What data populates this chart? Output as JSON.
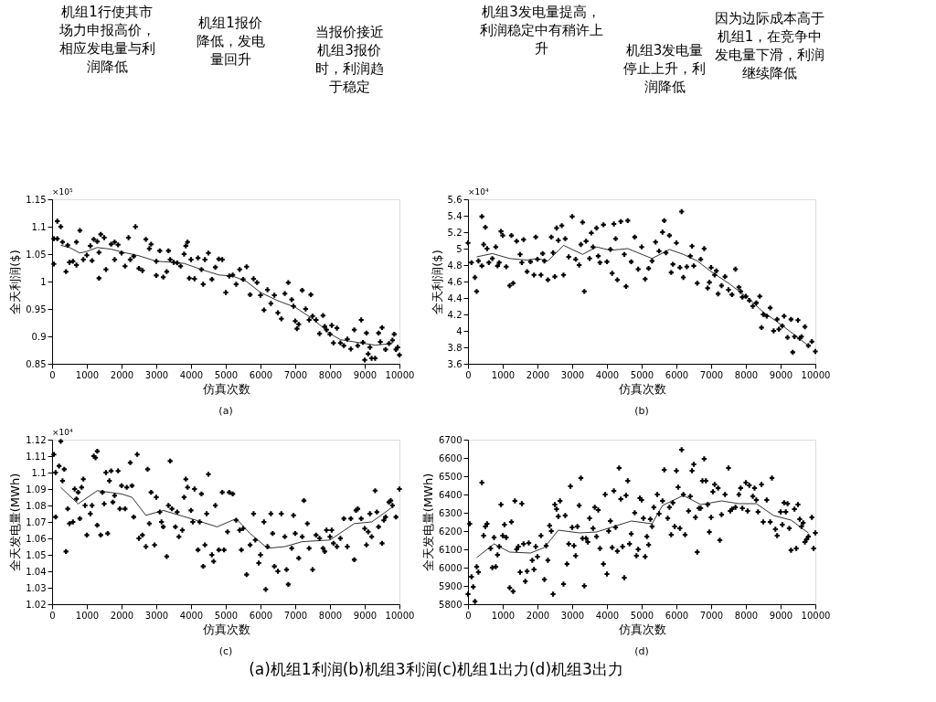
{
  "chart_data": [
    {
      "type": "scatter",
      "subtitle": "(a)",
      "xlabel": "仿真次数",
      "ylabel": "全天利润($)",
      "xlim": [
        0,
        10000
      ],
      "xticks": [
        0,
        1000,
        2000,
        3000,
        4000,
        5000,
        6000,
        7000,
        8000,
        9000,
        10000
      ],
      "ylim": [
        0.85,
        1.15
      ],
      "yticks": [
        0.85,
        0.9,
        0.95,
        1,
        1.05,
        1.1,
        1.15
      ],
      "grid": false,
      "annotations": [
        "×10⁵",
        "机组1行使其市场力申报高价，相应发电量与利润降低",
        "机组1报价降低，发电量回升",
        "当报价接近机组3报价时，利润趋于稳定"
      ],
      "series": [
        {
          "marker": "cross",
          "color": "#000000",
          "x": [
            150,
            250,
            50,
            150,
            300,
            450,
            700,
            800,
            50,
            400,
            500,
            600,
            700,
            900,
            1000,
            1100,
            1150,
            1200,
            1300,
            1350,
            1400,
            1500,
            1350,
            1550,
            1700,
            1800,
            1900,
            2000,
            1800,
            2100,
            2200,
            2250,
            2400,
            2350,
            2500,
            2600,
            2700,
            2800,
            2850,
            3000,
            3100,
            3000,
            3200,
            3300,
            3350,
            3400,
            3500,
            3600,
            3700,
            3800,
            3850,
            3900,
            3950,
            4000,
            4100,
            4200,
            4300,
            4350,
            4400,
            4500,
            4600,
            4700,
            4800,
            4900,
            5000,
            5100,
            5200,
            5300,
            5400,
            5500,
            5600,
            5700,
            5800,
            5900,
            6000,
            6100,
            6200,
            6300,
            6400,
            6500,
            6600,
            6700,
            6800,
            6900,
            6950,
            7000,
            7050,
            7100,
            7200,
            7300,
            7400,
            7450,
            7500,
            7600,
            7700,
            7800,
            7850,
            7900,
            8000,
            8050,
            8100,
            8200,
            8300,
            8400,
            8500,
            8600,
            8700,
            8800,
            8900,
            8950,
            9000,
            9050,
            9100,
            9150,
            9200,
            9300,
            9400,
            9450,
            9500,
            9600,
            9700,
            9800,
            9850,
            9900,
            9950,
            10000
          ],
          "values": [
            1.11,
            1.1,
            1.078,
            1.078,
            1.072,
            1.066,
            1.072,
            1.093,
            1.032,
            1.018,
            1.035,
            1.037,
            1.03,
            1.04,
            1.048,
            1.065,
            1.038,
            1.077,
            1.073,
            1.053,
            1.086,
            1.08,
            1.006,
            1.022,
            1.068,
            1.072,
            1.067,
            1.052,
            1.04,
            1.028,
            1.08,
            1.04,
            1.1,
            1.046,
            1.024,
            1.02,
            1.077,
            1.06,
            1.068,
            1.037,
            1.056,
            1.011,
            1.008,
            1.018,
            1.056,
            1.04,
            1.035,
            1.034,
            1.028,
            1.05,
            1.065,
            1.072,
            1.006,
            1.04,
            1.005,
            1.043,
            1.022,
            0.995,
            1.04,
            1.052,
            1.004,
            1.026,
            1.041,
            1.04,
            0.98,
            1.01,
            1.012,
            0.995,
            1.022,
            1.004,
            1.027,
            0.976,
            1.005,
            0.998,
            0.975,
            0.948,
            0.985,
            0.96,
            0.975,
            0.943,
            0.932,
            0.978,
            0.998,
            0.967,
            0.955,
            0.928,
            0.914,
            0.922,
            0.984,
            0.95,
            0.93,
            0.976,
            0.937,
            0.93,
            0.905,
            0.938,
            0.918,
            0.912,
            0.904,
            0.92,
            0.888,
            0.915,
            0.888,
            0.883,
            0.895,
            0.877,
            0.912,
            0.883,
            0.93,
            0.889,
            0.857,
            0.906,
            0.868,
            0.88,
            0.86,
            0.86,
            0.906,
            0.89,
            0.916,
            0.876,
            0.887,
            0.893,
            0.904,
            0.876,
            0.88,
            0.866
          ]
        },
        {
          "type": "line",
          "marker": "none",
          "color": "#000000",
          "x": [
            250,
            500,
            800,
            1000,
            1300,
            1700,
            2000,
            2500,
            3000,
            3500,
            3800,
            4300,
            4800,
            5200,
            5600,
            6000,
            6500,
            7000,
            7500,
            8000,
            8300,
            8700,
            9300,
            9800
          ],
          "values": [
            1.066,
            1.062,
            1.052,
            1.055,
            1.062,
            1.059,
            1.054,
            1.047,
            1.037,
            1.035,
            1.033,
            1.022,
            1.012,
            1.01,
            1.0,
            0.98,
            0.965,
            0.953,
            0.932,
            0.905,
            0.894,
            0.89,
            0.884,
            0.887
          ]
        }
      ]
    },
    {
      "type": "scatter",
      "subtitle": "(b)",
      "xlabel": "仿真次数",
      "ylabel": "全天利润($)",
      "xlim": [
        0,
        10000
      ],
      "xticks": [
        0,
        1000,
        2000,
        3000,
        4000,
        5000,
        6000,
        7000,
        8000,
        9000,
        10000
      ],
      "ylim": [
        3.6,
        5.6
      ],
      "yticks": [
        3.6,
        3.8,
        4,
        4.2,
        4.4,
        4.6,
        4.8,
        5,
        5.2,
        5.4,
        5.6
      ],
      "grid": false,
      "annotations": [
        "×10⁴",
        "机组3发电量提高，利润稳定中有稍许上升",
        "机组3发电量停止上升，利润降低",
        "因为边际成本高于机组1，在竞争中发电量下滑，利润继续降低"
      ],
      "series": [
        {
          "marker": "cross",
          "color": "#000000",
          "x": [
            0,
            100,
            200,
            250,
            300,
            400,
            400,
            450,
            500,
            550,
            600,
            700,
            800,
            850,
            900,
            950,
            1000,
            1100,
            1200,
            1250,
            1300,
            1400,
            1500,
            1550,
            1600,
            1700,
            1800,
            1900,
            1950,
            2000,
            2100,
            2150,
            2200,
            2300,
            2400,
            2450,
            2500,
            2550,
            2600,
            2700,
            2750,
            2800,
            2900,
            3000,
            3100,
            3200,
            3250,
            3300,
            3350,
            3400,
            3500,
            3550,
            3600,
            3700,
            3750,
            3800,
            3900,
            4000,
            4100,
            4150,
            4200,
            4250,
            4300,
            4400,
            4500,
            4550,
            4600,
            4700,
            4800,
            4900,
            5000,
            5100,
            5200,
            5300,
            5400,
            5500,
            5600,
            5650,
            5700,
            5800,
            5850,
            5900,
            6000,
            6100,
            6150,
            6200,
            6300,
            6400,
            6450,
            6500,
            6600,
            6700,
            6800,
            6900,
            6950,
            7000,
            7100,
            7150,
            7200,
            7300,
            7400,
            7500,
            7600,
            7700,
            7800,
            7850,
            7900,
            8000,
            8100,
            8200,
            8300,
            8400,
            8450,
            8500,
            8600,
            8700,
            8800,
            8900,
            8950,
            9050,
            9100,
            9200,
            9300,
            9350,
            9400,
            9500,
            9550,
            9600,
            9700,
            9800,
            9900,
            10000
          ],
          "values": [
            5.07,
            4.83,
            4.65,
            4.48,
            4.85,
            4.79,
            5.39,
            5.05,
            5.26,
            5.0,
            4.83,
            4.88,
            5.02,
            4.79,
            4.83,
            5.21,
            5.16,
            4.78,
            4.55,
            5.16,
            4.58,
            5.09,
            4.93,
            4.83,
            5.11,
            4.72,
            4.84,
            4.68,
            5.14,
            4.87,
            4.68,
            4.94,
            4.85,
            4.62,
            5.14,
            4.95,
            4.66,
            5.25,
            5.1,
            5.28,
            4.68,
            5.12,
            4.9,
            5.39,
            4.87,
            4.8,
            5.05,
            5.32,
            4.48,
            5.09,
            4.88,
            5.19,
            5.02,
            5.25,
            4.91,
            4.83,
            5.29,
            4.84,
            4.99,
            4.7,
            5.3,
            5.12,
            4.62,
            5.33,
            4.93,
            4.54,
            5.34,
            4.84,
            5.14,
            4.75,
            5.02,
            4.63,
            4.76,
            4.85,
            5.08,
            4.97,
            5.2,
            5.34,
            4.95,
            5.16,
            4.71,
            4.81,
            5.07,
            4.77,
            5.45,
            4.65,
            4.78,
            4.91,
            5.03,
            4.79,
            4.58,
            4.87,
            5.0,
            4.52,
            4.59,
            4.77,
            4.68,
            4.73,
            4.45,
            4.55,
            4.66,
            4.5,
            4.44,
            4.75,
            4.53,
            4.48,
            4.41,
            4.42,
            4.37,
            4.3,
            4.34,
            4.42,
            4.04,
            4.2,
            4.18,
            4.28,
            4.0,
            4.14,
            4.02,
            4.06,
            4.18,
            3.92,
            4.14,
            3.74,
            3.93,
            4.13,
            3.91,
            3.93,
            4.05,
            3.82,
            3.87,
            3.75
          ]
        },
        {
          "type": "line",
          "marker": "none",
          "color": "#000000",
          "x": [
            250,
            700,
            1200,
            1700,
            2000,
            2300,
            2750,
            3300,
            3700,
            4100,
            4600,
            5300,
            5800,
            6200,
            6600,
            7000,
            7500,
            8000,
            8500,
            9000,
            9500,
            9800
          ],
          "values": [
            4.9,
            4.94,
            4.88,
            4.86,
            4.88,
            4.85,
            5.04,
            4.93,
            5.02,
            4.98,
            5.0,
            4.88,
            4.99,
            4.93,
            4.85,
            4.72,
            4.58,
            4.42,
            4.23,
            4.08,
            3.92,
            3.82
          ]
        }
      ]
    },
    {
      "type": "scatter",
      "subtitle": "(c)",
      "xlabel": "仿真次数",
      "ylabel": "全天发电量(MWh)",
      "xlim": [
        0,
        10000
      ],
      "xticks": [
        0,
        1000,
        2000,
        3000,
        4000,
        5000,
        6000,
        7000,
        8000,
        9000,
        10000
      ],
      "ylim": [
        1.02,
        1.12
      ],
      "yticks": [
        1.02,
        1.03,
        1.04,
        1.05,
        1.06,
        1.07,
        1.08,
        1.09,
        1.1,
        1.11,
        1.12
      ],
      "grid": false,
      "annotations": [
        "×10⁴",
        "(a)机组1利润(b)机组3利润(c)机组1出力(d)机组3出力"
      ],
      "series": [
        {
          "marker": "cross",
          "color": "#000000",
          "x": [
            50,
            100,
            100,
            200,
            250,
            300,
            350,
            400,
            450,
            500,
            600,
            650,
            700,
            750,
            800,
            850,
            900,
            950,
            1000,
            1100,
            1150,
            1200,
            1250,
            1300,
            1300,
            1400,
            1450,
            1500,
            1550,
            1600,
            1650,
            1700,
            1750,
            1800,
            1900,
            1950,
            2000,
            2100,
            2150,
            2250,
            2300,
            2350,
            2450,
            2500,
            2600,
            2700,
            2750,
            2800,
            2850,
            2950,
            3000,
            3100,
            3150,
            3200,
            3300,
            3350,
            3400,
            3450,
            3550,
            3600,
            3650,
            3750,
            3800,
            3850,
            3900,
            4000,
            4050,
            4100,
            4200,
            4250,
            4300,
            4350,
            4400,
            4450,
            4500,
            4600,
            4650,
            4700,
            4800,
            4900,
            4950,
            5050,
            5100,
            5200,
            5300,
            5400,
            5450,
            5500,
            5600,
            5700,
            5800,
            5850,
            5950,
            6000,
            6100,
            6150,
            6200,
            6300,
            6350,
            6400,
            6500,
            6600,
            6700,
            6750,
            6800,
            6900,
            6950,
            7000,
            7100,
            7200,
            7250,
            7350,
            7400,
            7500,
            7600,
            7700,
            7800,
            7850,
            7900,
            8000,
            8050,
            8100,
            8200,
            8300,
            8400,
            8500,
            8600,
            8700,
            8750,
            8800,
            8900,
            9000,
            9050,
            9100,
            9150,
            9200,
            9300,
            9350,
            9400,
            9500,
            9550,
            9600,
            9700,
            9750,
            9800,
            9900,
            10000
          ],
          "values": [
            1.111,
            1.1,
            1.073,
            1.104,
            1.119,
            1.095,
            1.102,
            1.052,
            1.078,
            1.069,
            1.07,
            1.09,
            1.084,
            1.088,
            1.072,
            1.091,
            1.096,
            1.08,
            1.062,
            1.075,
            1.08,
            1.11,
            1.109,
            1.068,
            1.113,
            1.062,
            1.088,
            1.081,
            1.1,
            1.063,
            1.095,
            1.101,
            1.082,
            1.086,
            1.101,
            1.078,
            1.092,
            1.078,
            1.091,
            1.106,
            1.092,
            1.073,
            1.111,
            1.06,
            1.062,
            1.055,
            1.102,
            1.069,
            1.088,
            1.056,
            1.085,
            1.076,
            1.07,
            1.067,
            1.049,
            1.08,
            1.107,
            1.078,
            1.067,
            1.076,
            1.061,
            1.065,
            1.085,
            1.096,
            1.091,
            1.077,
            1.07,
            1.09,
            1.053,
            1.07,
            1.087,
            1.043,
            1.056,
            1.075,
            1.099,
            1.05,
            1.046,
            1.08,
            1.053,
            1.088,
            1.053,
            1.064,
            1.088,
            1.087,
            1.071,
            1.065,
            1.053,
            1.066,
            1.038,
            1.056,
            1.075,
            1.059,
            1.045,
            1.05,
            1.07,
            1.029,
            1.055,
            1.075,
            1.063,
            1.043,
            1.04,
            1.075,
            1.061,
            1.041,
            1.032,
            1.054,
            1.074,
            1.063,
            1.048,
            1.061,
            1.083,
            1.069,
            1.054,
            1.041,
            1.062,
            1.06,
            1.054,
            1.052,
            1.065,
            1.061,
            1.065,
            1.057,
            1.055,
            1.06,
            1.072,
            1.055,
            1.072,
            1.047,
            1.077,
            1.078,
            1.072,
            1.066,
            1.056,
            1.064,
            1.075,
            1.061,
            1.089,
            1.076,
            1.067,
            1.057,
            1.071,
            1.073,
            1.082,
            1.083,
            1.08,
            1.073,
            1.09
          ]
        },
        {
          "type": "line",
          "marker": "none",
          "color": "#000000",
          "x": [
            250,
            750,
            1300,
            2000,
            2300,
            2700,
            3200,
            4000,
            4750,
            5300,
            5700,
            6200,
            6700,
            7200,
            8000,
            8700,
            9200,
            9600,
            9850
          ],
          "values": [
            1.091,
            1.081,
            1.089,
            1.087,
            1.085,
            1.074,
            1.077,
            1.072,
            1.067,
            1.072,
            1.063,
            1.054,
            1.055,
            1.058,
            1.059,
            1.069,
            1.07,
            1.076,
            1.08
          ]
        }
      ]
    },
    {
      "type": "scatter",
      "subtitle": "(d)",
      "xlabel": "仿真次数",
      "ylabel": "全天发电量(MWh)",
      "xlim": [
        0,
        10000
      ],
      "xticks": [
        0,
        1000,
        2000,
        3000,
        4000,
        5000,
        6000,
        7000,
        8000,
        9000,
        10000
      ],
      "ylim": [
        5800,
        6700
      ],
      "yticks": [
        5800,
        5900,
        6000,
        6100,
        6200,
        6300,
        6400,
        6500,
        6600,
        6700
      ],
      "grid": false,
      "series": [
        {
          "marker": "cross",
          "color": "#000000",
          "x": [
            0,
            50,
            100,
            150,
            200,
            250,
            300,
            400,
            450,
            500,
            550,
            650,
            700,
            750,
            800,
            850,
            900,
            950,
            1000,
            1050,
            1100,
            1200,
            1250,
            1300,
            1350,
            1400,
            1450,
            1500,
            1550,
            1600,
            1650,
            1700,
            1750,
            1850,
            1900,
            1950,
            2000,
            2100,
            2200,
            2250,
            2300,
            2350,
            2400,
            2450,
            2500,
            2550,
            2600,
            2650,
            2750,
            2800,
            2850,
            2900,
            2950,
            3000,
            3050,
            3100,
            3150,
            3200,
            3250,
            3300,
            3350,
            3400,
            3450,
            3500,
            3600,
            3650,
            3700,
            3750,
            3800,
            3900,
            3950,
            4000,
            4050,
            4100,
            4150,
            4200,
            4250,
            4300,
            4350,
            4400,
            4450,
            4500,
            4550,
            4600,
            4650,
            4700,
            4800,
            4850,
            4900,
            4950,
            5000,
            5050,
            5100,
            5150,
            5200,
            5250,
            5300,
            5350,
            5450,
            5500,
            5600,
            5650,
            5750,
            5800,
            5850,
            5900,
            5950,
            6000,
            6050,
            6100,
            6150,
            6200,
            6250,
            6350,
            6400,
            6450,
            6500,
            6550,
            6600,
            6650,
            6700,
            6750,
            6800,
            6850,
            6900,
            6950,
            7000,
            7050,
            7100,
            7200,
            7250,
            7300,
            7400,
            7500,
            7550,
            7600,
            7700,
            7800,
            7850,
            7900,
            8000,
            8050,
            8100,
            8200,
            8250,
            8300,
            8350,
            8450,
            8500,
            8600,
            8700,
            8750,
            8850,
            8900,
            9000,
            9050,
            9100,
            9150,
            9200,
            9250,
            9300,
            9400,
            9450,
            9500,
            9550,
            9600,
            9650,
            9700,
            9750,
            9800,
            9900,
            9950,
            10000
          ],
          "values": [
            5855,
            6240,
            5950,
            5895,
            5815,
            6005,
            5975,
            6465,
            6175,
            6225,
            6240,
            6105,
            6000,
            6165,
            6005,
            6070,
            6115,
            6345,
            6175,
            6235,
            6165,
            5890,
            6250,
            5870,
            6365,
            6100,
            6115,
            5975,
            6350,
            6130,
            5925,
            5980,
            6135,
            6040,
            5990,
            6115,
            6060,
            6175,
            5935,
            6120,
            6040,
            6230,
            6200,
            5855,
            6345,
            6320,
            6280,
            6365,
            5910,
            6285,
            6020,
            6130,
            6445,
            6220,
            6120,
            6065,
            6225,
            6340,
            6490,
            6160,
            5900,
            6160,
            6140,
            6270,
            6215,
            6330,
            6170,
            6315,
            6105,
            6020,
            6400,
            5965,
            6200,
            6255,
            6110,
            6420,
            6220,
            6090,
            6545,
            6375,
            6115,
            5945,
            6395,
            6475,
            6130,
            6185,
            6300,
            6065,
            6100,
            6380,
            6370,
            6270,
            6060,
            6170,
            6125,
            6265,
            6225,
            6330,
            6400,
            6295,
            6365,
            6535,
            6270,
            6330,
            6180,
            6355,
            6225,
            6530,
            6440,
            6215,
            6645,
            6400,
            6180,
            6310,
            6390,
            6530,
            6565,
            6275,
            6085,
            6325,
            6325,
            6475,
            6595,
            6475,
            6345,
            6195,
            6275,
            6415,
            6455,
            6435,
            6150,
            6290,
            6400,
            6545,
            6310,
            6320,
            6330,
            6400,
            6435,
            6325,
            6465,
            6310,
            6450,
            6390,
            6435,
            6370,
            6305,
            6455,
            6250,
            6370,
            6250,
            6490,
            6210,
            6175,
            6305,
            6235,
            6355,
            6305,
            6350,
            6215,
            6095,
            6320,
            6105,
            6345,
            6265,
            6225,
            6245,
            6140,
            6155,
            6170,
            6275,
            6105,
            6190
          ]
        },
        {
          "type": "line",
          "marker": "none",
          "color": "#000000",
          "x": [
            250,
            750,
            1200,
            1800,
            2200,
            2600,
            3200,
            3700,
            4700,
            5300,
            5600,
            6200,
            6700,
            7300,
            7800,
            8300,
            8800,
            9300,
            9800
          ],
          "values": [
            6055,
            6130,
            6085,
            6080,
            6110,
            6205,
            6190,
            6195,
            6255,
            6240,
            6340,
            6395,
            6345,
            6365,
            6350,
            6350,
            6285,
            6260,
            6190
          ]
        }
      ]
    }
  ]
}
